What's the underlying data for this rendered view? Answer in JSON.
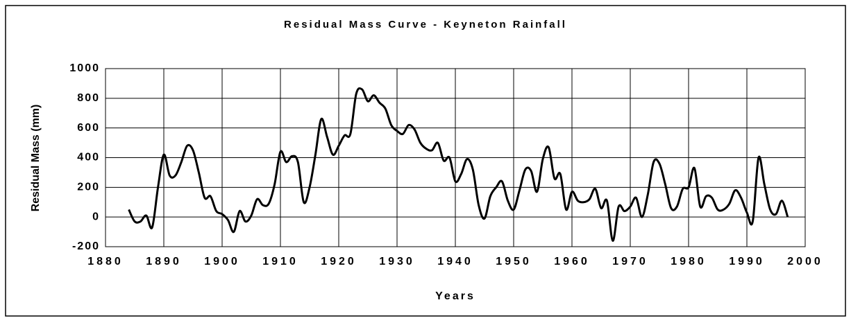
{
  "chart_data": {
    "type": "line",
    "title": "Residual Mass Curve - Keyneton Rainfall",
    "xlabel": "Years",
    "ylabel": "Residual Mass (mm)",
    "x": [
      1884,
      1885,
      1886,
      1887,
      1888,
      1889,
      1890,
      1891,
      1892,
      1893,
      1894,
      1895,
      1896,
      1897,
      1898,
      1899,
      1900,
      1901,
      1902,
      1903,
      1904,
      1905,
      1906,
      1907,
      1908,
      1909,
      1910,
      1911,
      1912,
      1913,
      1914,
      1915,
      1916,
      1917,
      1918,
      1919,
      1920,
      1921,
      1922,
      1923,
      1924,
      1925,
      1926,
      1927,
      1928,
      1929,
      1930,
      1931,
      1932,
      1933,
      1934,
      1935,
      1936,
      1937,
      1938,
      1939,
      1940,
      1941,
      1942,
      1943,
      1944,
      1945,
      1946,
      1947,
      1948,
      1949,
      1950,
      1951,
      1952,
      1953,
      1954,
      1955,
      1956,
      1957,
      1958,
      1959,
      1960,
      1961,
      1962,
      1963,
      1964,
      1965,
      1966,
      1967,
      1968,
      1969,
      1970,
      1971,
      1972,
      1973,
      1974,
      1975,
      1976,
      1977,
      1978,
      1979,
      1980,
      1981,
      1982,
      1983,
      1984,
      1985,
      1986,
      1987,
      1988,
      1989,
      1990,
      1991,
      1992,
      1993,
      1994,
      1995,
      1996,
      1997
    ],
    "series": [
      {
        "name": "Residual Mass",
        "color": "#000000",
        "values": [
          50,
          -30,
          -30,
          10,
          -70,
          200,
          420,
          280,
          280,
          370,
          480,
          450,
          300,
          130,
          140,
          40,
          20,
          -20,
          -100,
          40,
          -30,
          10,
          120,
          80,
          90,
          220,
          440,
          370,
          410,
          370,
          100,
          200,
          420,
          660,
          540,
          420,
          480,
          550,
          560,
          830,
          860,
          780,
          820,
          770,
          730,
          620,
          580,
          560,
          620,
          590,
          500,
          460,
          450,
          500,
          380,
          400,
          240,
          290,
          390,
          320,
          80,
          -10,
          140,
          200,
          240,
          110,
          50,
          180,
          320,
          310,
          170,
          390,
          470,
          260,
          290,
          50,
          170,
          110,
          100,
          120,
          190,
          60,
          110,
          -160,
          70,
          40,
          70,
          130,
          0,
          150,
          370,
          360,
          220,
          60,
          70,
          190,
          200,
          330,
          70,
          140,
          130,
          50,
          50,
          90,
          180,
          130,
          30,
          -30,
          400,
          220,
          50,
          20,
          110,
          0
        ]
      }
    ],
    "xlim": [
      1880,
      2000
    ],
    "xticks": [
      1880,
      1890,
      1900,
      1910,
      1920,
      1930,
      1940,
      1950,
      1960,
      1970,
      1980,
      1990,
      2000
    ],
    "ylim": [
      -200,
      1000
    ],
    "yticks": [
      -200,
      0,
      200,
      400,
      600,
      800,
      1000
    ],
    "grid": true
  }
}
